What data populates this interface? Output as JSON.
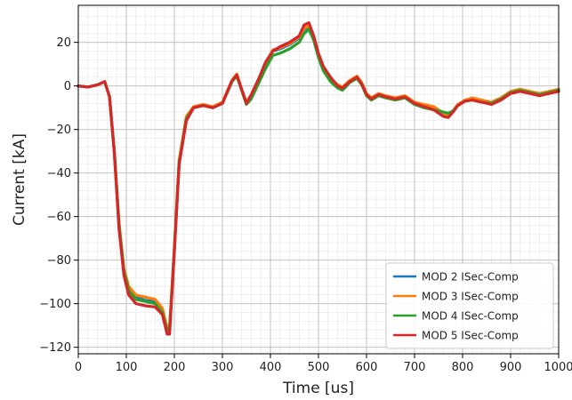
{
  "chart_data": {
    "type": "line",
    "title": "",
    "xlabel": "Time [us]",
    "ylabel": "Current [kA]",
    "xlim": [
      0,
      1000
    ],
    "ylim": [
      -123,
      37
    ],
    "x_ticks": [
      0,
      100,
      200,
      300,
      400,
      500,
      600,
      700,
      800,
      900,
      1000
    ],
    "y_ticks": [
      20,
      0,
      -20,
      -40,
      -60,
      -80,
      -100,
      -120
    ],
    "x_minor_step": 20,
    "y_minor_step": 4,
    "grid": "major and minor",
    "legend_position": "lower-right",
    "series": [
      {
        "name": "MOD 2 ISec-Comp",
        "color": "#1f77b4",
        "points": [
          [
            0,
            0
          ],
          [
            20,
            -0.5
          ],
          [
            40,
            0.5
          ],
          [
            55,
            2
          ],
          [
            65,
            -5
          ],
          [
            75,
            -30
          ],
          [
            85,
            -65
          ],
          [
            95,
            -85
          ],
          [
            105,
            -93
          ],
          [
            120,
            -97
          ],
          [
            140,
            -98.5
          ],
          [
            160,
            -99
          ],
          [
            175,
            -103
          ],
          [
            185,
            -112
          ],
          [
            190,
            -112
          ],
          [
            200,
            -75
          ],
          [
            210,
            -35
          ],
          [
            225,
            -15
          ],
          [
            240,
            -10
          ],
          [
            260,
            -9
          ],
          [
            280,
            -10
          ],
          [
            300,
            -8
          ],
          [
            320,
            2
          ],
          [
            330,
            5
          ],
          [
            340,
            -2
          ],
          [
            350,
            -8
          ],
          [
            360,
            -5
          ],
          [
            375,
            2
          ],
          [
            390,
            10
          ],
          [
            405,
            16
          ],
          [
            420,
            17
          ],
          [
            440,
            19
          ],
          [
            460,
            22
          ],
          [
            470,
            26
          ],
          [
            480,
            27
          ],
          [
            490,
            22
          ],
          [
            500,
            14
          ],
          [
            510,
            8
          ],
          [
            525,
            3
          ],
          [
            540,
            0
          ],
          [
            550,
            -1
          ],
          [
            565,
            2
          ],
          [
            580,
            4
          ],
          [
            590,
            1
          ],
          [
            600,
            -4
          ],
          [
            610,
            -6
          ],
          [
            625,
            -4
          ],
          [
            640,
            -5
          ],
          [
            660,
            -6
          ],
          [
            680,
            -5
          ],
          [
            700,
            -8
          ],
          [
            720,
            -9
          ],
          [
            740,
            -10
          ],
          [
            760,
            -13
          ],
          [
            770,
            -14
          ],
          [
            780,
            -12
          ],
          [
            790,
            -9
          ],
          [
            805,
            -7
          ],
          [
            820,
            -6
          ],
          [
            840,
            -7
          ],
          [
            860,
            -8
          ],
          [
            880,
            -6
          ],
          [
            900,
            -3
          ],
          [
            920,
            -2
          ],
          [
            940,
            -3
          ],
          [
            960,
            -4
          ],
          [
            980,
            -3
          ],
          [
            1000,
            -2
          ]
        ]
      },
      {
        "name": "MOD 3 ISec-Comp",
        "color": "#ff7f0e",
        "points": [
          [
            0,
            0
          ],
          [
            20,
            -0.5
          ],
          [
            40,
            0.5
          ],
          [
            55,
            2
          ],
          [
            65,
            -5
          ],
          [
            75,
            -30
          ],
          [
            85,
            -63
          ],
          [
            95,
            -84
          ],
          [
            105,
            -92
          ],
          [
            120,
            -96
          ],
          [
            140,
            -97
          ],
          [
            160,
            -98
          ],
          [
            175,
            -102
          ],
          [
            185,
            -111
          ],
          [
            190,
            -111
          ],
          [
            200,
            -74
          ],
          [
            210,
            -34
          ],
          [
            225,
            -14
          ],
          [
            240,
            -9.5
          ],
          [
            260,
            -8.5
          ],
          [
            280,
            -9.5
          ],
          [
            300,
            -7.5
          ],
          [
            320,
            2.5
          ],
          [
            330,
            5.5
          ],
          [
            340,
            -1.5
          ],
          [
            350,
            -7.5
          ],
          [
            360,
            -4.5
          ],
          [
            375,
            2.5
          ],
          [
            390,
            10.5
          ],
          [
            405,
            16.5
          ],
          [
            420,
            17.5
          ],
          [
            440,
            19.5
          ],
          [
            460,
            22.5
          ],
          [
            470,
            26.5
          ],
          [
            480,
            27.5
          ],
          [
            490,
            22.5
          ],
          [
            500,
            14.5
          ],
          [
            510,
            8.5
          ],
          [
            525,
            3.5
          ],
          [
            540,
            0.5
          ],
          [
            550,
            -0.5
          ],
          [
            565,
            2.5
          ],
          [
            580,
            4.5
          ],
          [
            590,
            1.5
          ],
          [
            600,
            -3.5
          ],
          [
            610,
            -5.5
          ],
          [
            625,
            -3.5
          ],
          [
            640,
            -4.5
          ],
          [
            660,
            -5.5
          ],
          [
            680,
            -4.5
          ],
          [
            700,
            -7.5
          ],
          [
            720,
            -8.5
          ],
          [
            740,
            -9.5
          ],
          [
            760,
            -12.5
          ],
          [
            770,
            -13.5
          ],
          [
            780,
            -11.5
          ],
          [
            790,
            -8.5
          ],
          [
            805,
            -6.5
          ],
          [
            820,
            -5.5
          ],
          [
            840,
            -6.5
          ],
          [
            860,
            -7.5
          ],
          [
            880,
            -5.5
          ],
          [
            900,
            -2.5
          ],
          [
            920,
            -1.5
          ],
          [
            940,
            -2.5
          ],
          [
            960,
            -3.5
          ],
          [
            980,
            -2.5
          ],
          [
            1000,
            -1.5
          ]
        ]
      },
      {
        "name": "MOD 4 ISec-Comp",
        "color": "#2ca02c",
        "points": [
          [
            0,
            0
          ],
          [
            20,
            -0.5
          ],
          [
            40,
            0.5
          ],
          [
            55,
            2
          ],
          [
            65,
            -5
          ],
          [
            75,
            -30
          ],
          [
            85,
            -64
          ],
          [
            95,
            -85
          ],
          [
            105,
            -94
          ],
          [
            120,
            -98
          ],
          [
            140,
            -99
          ],
          [
            160,
            -100
          ],
          [
            175,
            -104
          ],
          [
            185,
            -112
          ],
          [
            190,
            -112
          ],
          [
            200,
            -75
          ],
          [
            210,
            -35
          ],
          [
            225,
            -15
          ],
          [
            240,
            -10
          ],
          [
            260,
            -9
          ],
          [
            280,
            -10
          ],
          [
            300,
            -8
          ],
          [
            320,
            2
          ],
          [
            330,
            4.5
          ],
          [
            340,
            -2
          ],
          [
            350,
            -8.5
          ],
          [
            360,
            -6
          ],
          [
            375,
            1
          ],
          [
            390,
            8
          ],
          [
            405,
            14
          ],
          [
            420,
            15
          ],
          [
            440,
            17
          ],
          [
            460,
            20
          ],
          [
            470,
            24
          ],
          [
            480,
            26
          ],
          [
            490,
            21
          ],
          [
            500,
            13
          ],
          [
            510,
            7
          ],
          [
            525,
            2
          ],
          [
            540,
            -1
          ],
          [
            550,
            -2
          ],
          [
            565,
            1.5
          ],
          [
            580,
            3.5
          ],
          [
            590,
            0.5
          ],
          [
            600,
            -4.5
          ],
          [
            610,
            -6.5
          ],
          [
            625,
            -4.5
          ],
          [
            640,
            -5.5
          ],
          [
            660,
            -6.5
          ],
          [
            680,
            -5.5
          ],
          [
            700,
            -8.5
          ],
          [
            720,
            -10
          ],
          [
            740,
            -11
          ],
          [
            760,
            -12
          ],
          [
            770,
            -12.5
          ],
          [
            780,
            -11.5
          ],
          [
            790,
            -9
          ],
          [
            805,
            -7
          ],
          [
            820,
            -6.5
          ],
          [
            840,
            -7.5
          ],
          [
            860,
            -8
          ],
          [
            880,
            -6
          ],
          [
            900,
            -3
          ],
          [
            920,
            -2
          ],
          [
            940,
            -3
          ],
          [
            960,
            -4
          ],
          [
            980,
            -3
          ],
          [
            1000,
            -2
          ]
        ]
      },
      {
        "name": "MOD 5 ISec-Comp",
        "color": "#d62728",
        "points": [
          [
            0,
            0
          ],
          [
            20,
            -0.5
          ],
          [
            40,
            0.5
          ],
          [
            55,
            2
          ],
          [
            65,
            -5
          ],
          [
            75,
            -31
          ],
          [
            85,
            -66
          ],
          [
            95,
            -87
          ],
          [
            105,
            -96
          ],
          [
            120,
            -100
          ],
          [
            140,
            -101
          ],
          [
            160,
            -101.5
          ],
          [
            175,
            -105
          ],
          [
            185,
            -114
          ],
          [
            190,
            -114
          ],
          [
            200,
            -76
          ],
          [
            210,
            -36
          ],
          [
            225,
            -16
          ],
          [
            240,
            -10
          ],
          [
            260,
            -9
          ],
          [
            280,
            -10
          ],
          [
            300,
            -8
          ],
          [
            320,
            2.5
          ],
          [
            330,
            5
          ],
          [
            340,
            -1.5
          ],
          [
            350,
            -8
          ],
          [
            360,
            -4
          ],
          [
            375,
            3
          ],
          [
            390,
            11
          ],
          [
            405,
            16
          ],
          [
            420,
            18
          ],
          [
            440,
            20
          ],
          [
            460,
            23
          ],
          [
            470,
            28
          ],
          [
            480,
            29
          ],
          [
            490,
            23
          ],
          [
            500,
            15
          ],
          [
            510,
            9
          ],
          [
            525,
            4
          ],
          [
            540,
            0
          ],
          [
            550,
            -1
          ],
          [
            565,
            2
          ],
          [
            580,
            4
          ],
          [
            590,
            1
          ],
          [
            600,
            -4
          ],
          [
            610,
            -6
          ],
          [
            625,
            -4
          ],
          [
            640,
            -5
          ],
          [
            660,
            -6
          ],
          [
            680,
            -5
          ],
          [
            700,
            -8
          ],
          [
            720,
            -9.5
          ],
          [
            740,
            -11
          ],
          [
            760,
            -14
          ],
          [
            770,
            -14.5
          ],
          [
            780,
            -12
          ],
          [
            790,
            -9
          ],
          [
            805,
            -7
          ],
          [
            820,
            -6.5
          ],
          [
            840,
            -7.5
          ],
          [
            860,
            -8.5
          ],
          [
            880,
            -6.5
          ],
          [
            900,
            -3.5
          ],
          [
            920,
            -2.5
          ],
          [
            940,
            -3.5
          ],
          [
            960,
            -4.5
          ],
          [
            980,
            -3.5
          ],
          [
            1000,
            -2.5
          ]
        ]
      }
    ]
  }
}
